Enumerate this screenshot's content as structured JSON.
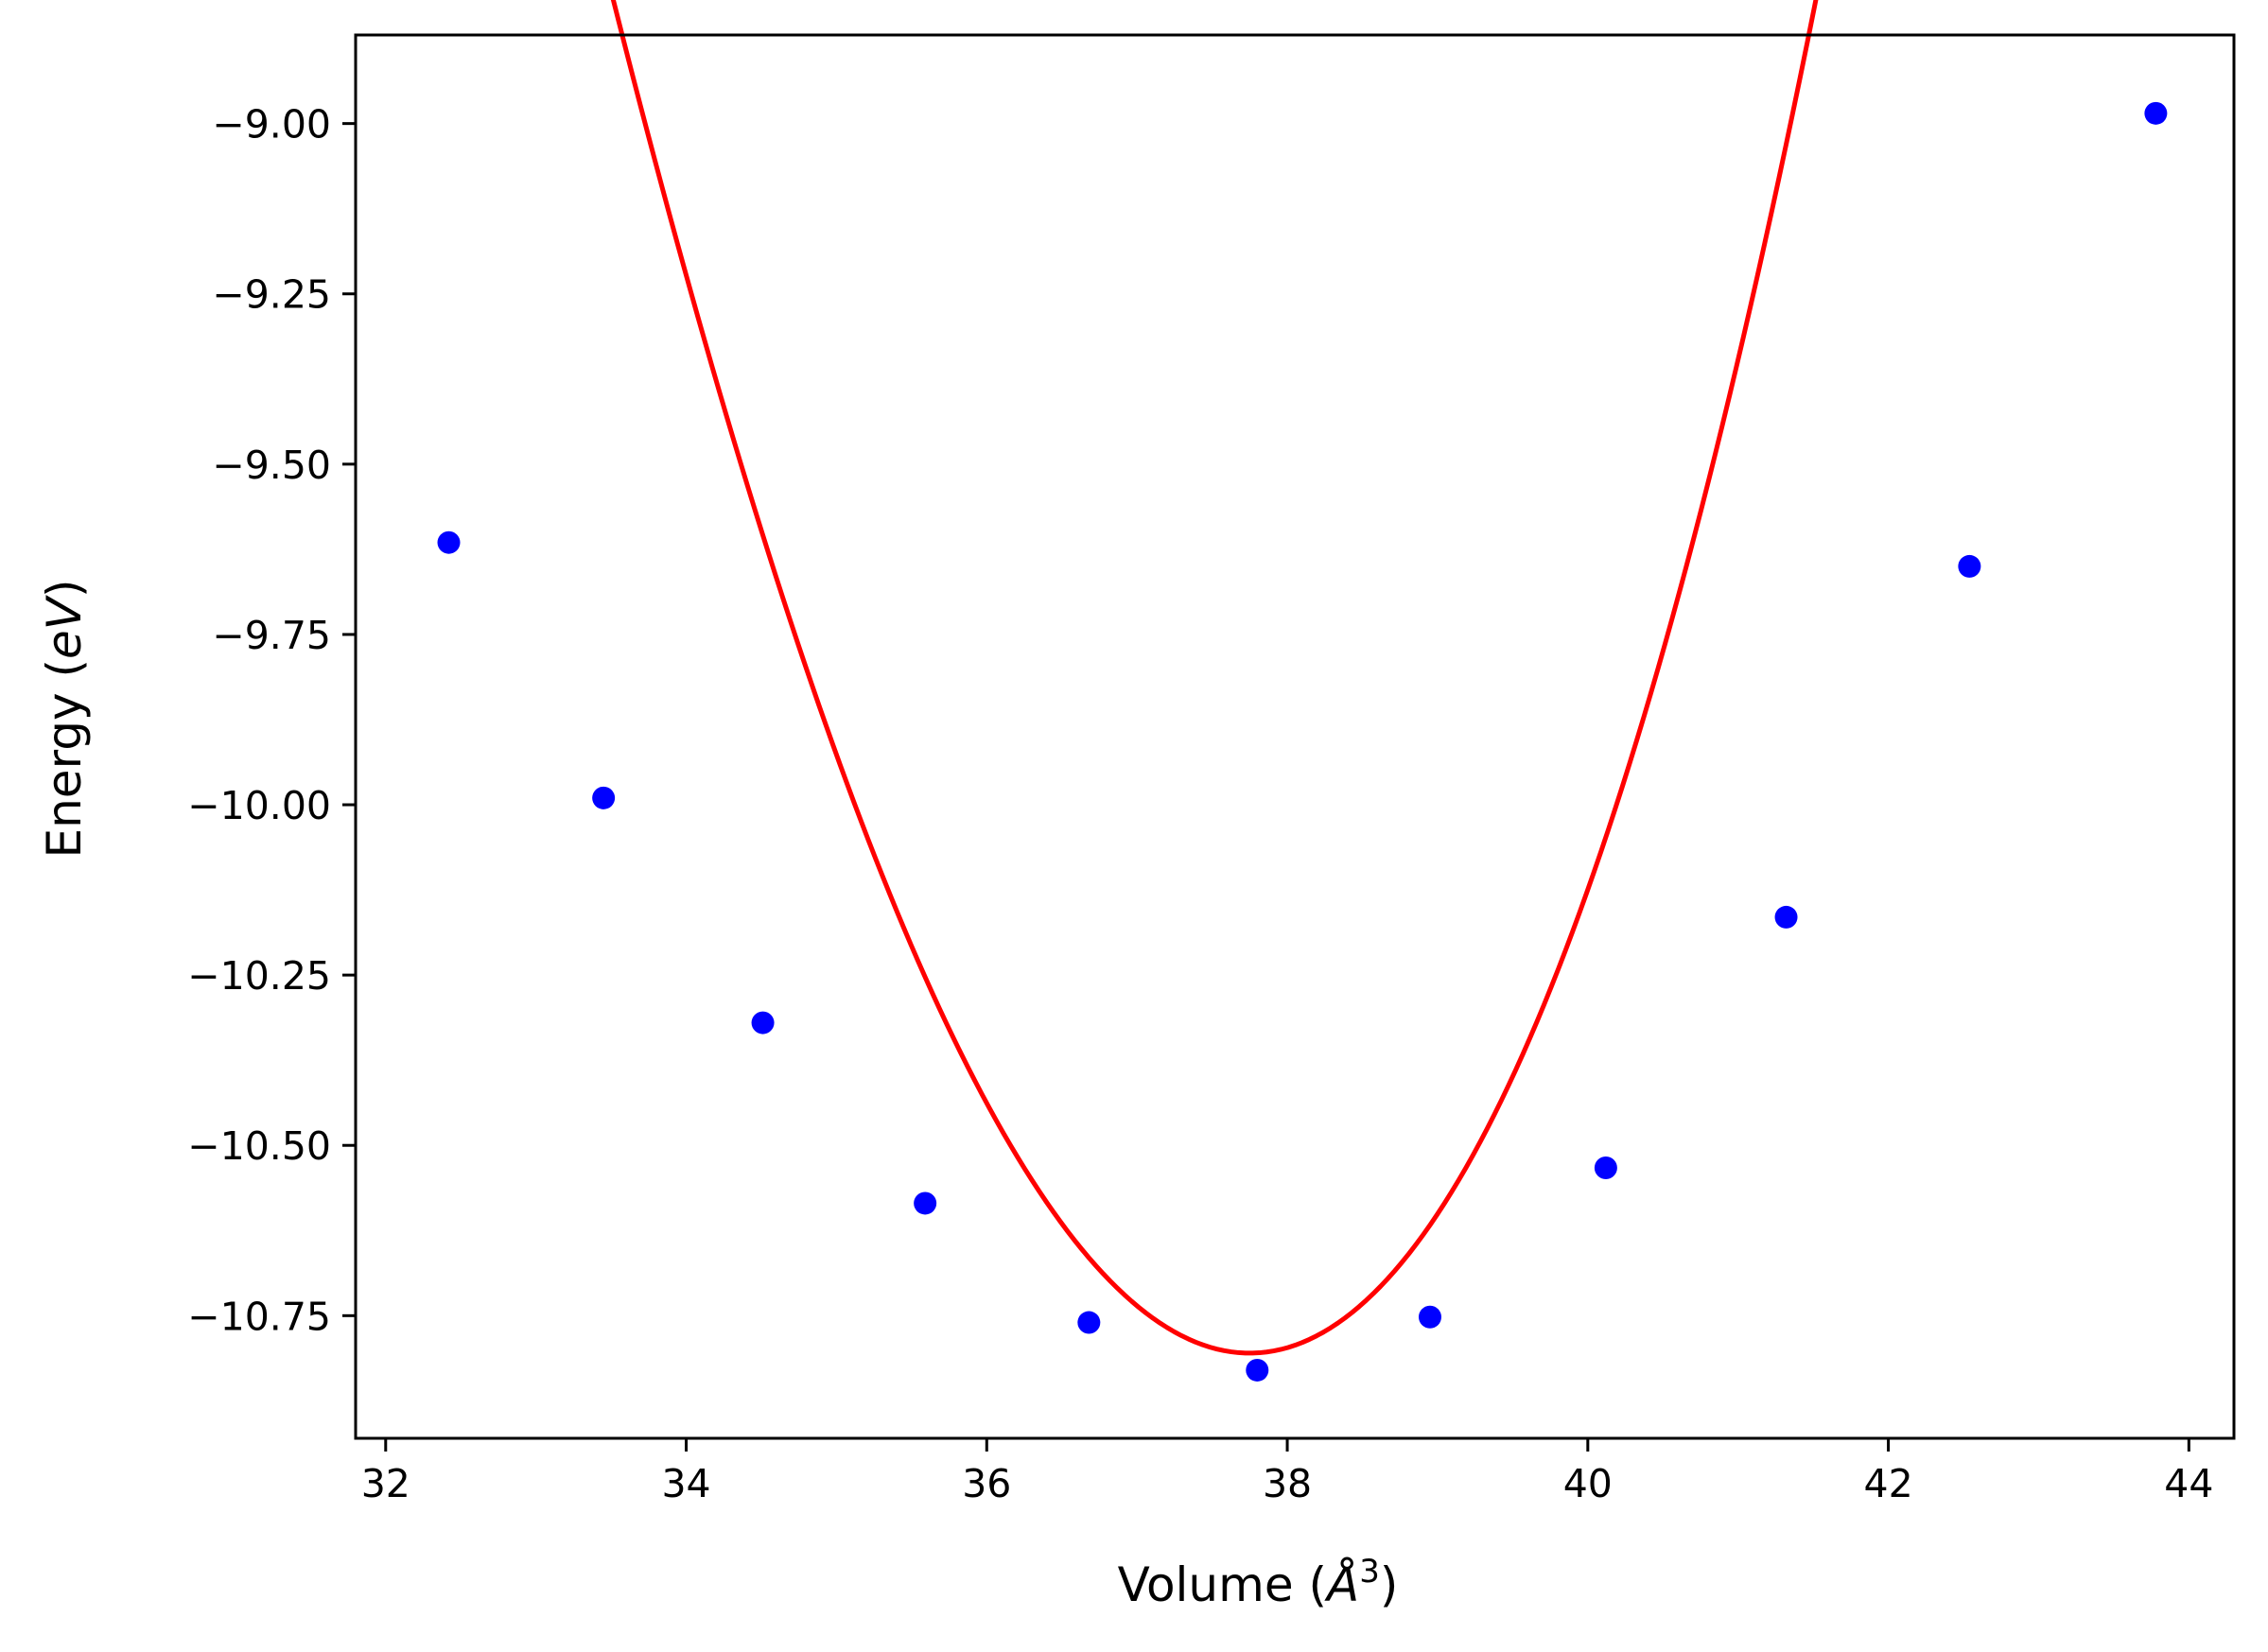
{
  "chart_data": {
    "type": "scatter",
    "title": "",
    "xlabel": {
      "prefix": "Volume (",
      "symbol": "Å",
      "sup": "3",
      "suffix": ")"
    },
    "ylabel": {
      "prefix": "Energy (",
      "symbol": "eV",
      "suffix": ")"
    },
    "xlim": [
      31.8,
      44.3
    ],
    "ylim": [
      -10.93,
      -8.87
    ],
    "xticks": [
      32,
      34,
      36,
      38,
      40,
      42,
      44
    ],
    "xtick_labels": [
      "32",
      "34",
      "36",
      "38",
      "40",
      "42",
      "44"
    ],
    "yticks": [
      -9.0,
      -9.25,
      -9.5,
      -9.75,
      -10.0,
      -10.25,
      -10.5,
      -10.75
    ],
    "ytick_labels": [
      "−9.00",
      "−9.25",
      "−9.50",
      "−9.75",
      "−10.00",
      "−10.25",
      "−10.50",
      "−10.75"
    ],
    "grid": false,
    "series": [
      {
        "kind": "points",
        "color": "#0000ff",
        "x": [
          32.42,
          33.45,
          34.51,
          35.59,
          36.68,
          37.8,
          38.95,
          40.12,
          41.32,
          42.54,
          43.78
        ],
        "y": [
          -9.615,
          -9.99,
          -10.32,
          -10.585,
          -10.76,
          -10.83,
          -10.752,
          -10.533,
          -10.165,
          -9.65,
          -8.985
        ]
      },
      {
        "kind": "fit-curve",
        "color": "#ff0000",
        "x_range": [
          32.42,
          43.78
        ],
        "x_min": 37.75,
        "y_min": -10.805,
        "coef_quadratic": 0.1262,
        "coef_cubic": 0.00365
      }
    ]
  }
}
